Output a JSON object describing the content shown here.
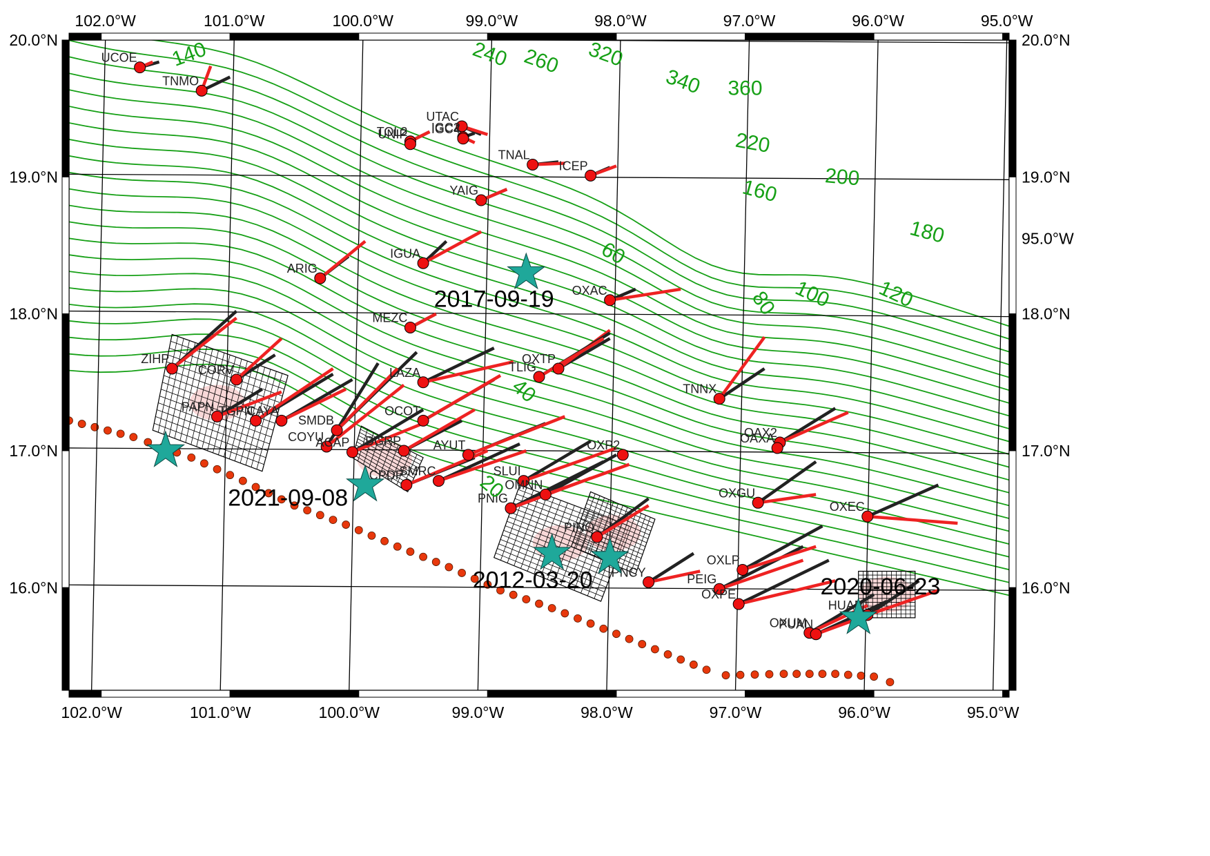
{
  "map": {
    "lon_range": [
      -102.25,
      -94.95
    ],
    "lat_range": [
      15.25,
      20.0
    ],
    "lon_ticks": [
      {
        "value": -102.0,
        "label": "102.0°W"
      },
      {
        "value": -101.0,
        "label": "101.0°W"
      },
      {
        "value": -100.0,
        "label": "100.0°W"
      },
      {
        "value": -99.0,
        "label": "99.0°W"
      },
      {
        "value": -98.0,
        "label": "98.0°W"
      },
      {
        "value": -97.0,
        "label": "97.0°W"
      },
      {
        "value": -96.0,
        "label": "96.0°W"
      },
      {
        "value": -95.0,
        "label": "95.0°W"
      }
    ],
    "lat_ticks": [
      {
        "value": 20.0,
        "label": "20.0°N"
      },
      {
        "value": 19.0,
        "label": "19.0°N"
      },
      {
        "value": 18.0,
        "label": "18.0°N"
      },
      {
        "value": 17.0,
        "label": "17.0°N"
      },
      {
        "value": 16.0,
        "label": "16.0°N"
      }
    ],
    "right_extra_label": "95.0°W",
    "colors": {
      "contour": "#16a016",
      "observed": "#ee2222",
      "model": "#222222",
      "station": "#ee1111",
      "star": "#1fa89a",
      "trench": "#e8380c",
      "grid": "#000000"
    }
  },
  "contour_labels": [
    {
      "text": "140",
      "lon": -101.3,
      "lat": 19.85,
      "rot": -20
    },
    {
      "text": "240",
      "lon": -99.0,
      "lat": 19.85,
      "rot": 20
    },
    {
      "text": "260",
      "lon": -98.6,
      "lat": 19.8,
      "rot": 20
    },
    {
      "text": "320",
      "lon": -98.1,
      "lat": 19.85,
      "rot": 20
    },
    {
      "text": "340",
      "lon": -97.5,
      "lat": 19.65,
      "rot": 20
    },
    {
      "text": "360",
      "lon": -97.0,
      "lat": 19.6,
      "rot": 0
    },
    {
      "text": "220",
      "lon": -96.95,
      "lat": 19.2,
      "rot": 10
    },
    {
      "text": "200",
      "lon": -96.25,
      "lat": 18.95,
      "rot": 5
    },
    {
      "text": "160",
      "lon": -96.9,
      "lat": 18.85,
      "rot": 15
    },
    {
      "text": "180",
      "lon": -95.6,
      "lat": 18.55,
      "rot": 15
    },
    {
      "text": "60",
      "lon": -98.05,
      "lat": 18.4,
      "rot": 30
    },
    {
      "text": "100",
      "lon": -96.5,
      "lat": 18.1,
      "rot": 25
    },
    {
      "text": "80",
      "lon": -96.9,
      "lat": 18.05,
      "rot": 55
    },
    {
      "text": "120",
      "lon": -95.85,
      "lat": 18.1,
      "rot": 25
    },
    {
      "text": "40",
      "lon": -98.75,
      "lat": 17.4,
      "rot": 40
    },
    {
      "text": "20",
      "lon": -99.0,
      "lat": 16.7,
      "rot": 40
    }
  ],
  "event_labels": [
    {
      "text": "2017-09-19",
      "lon": -98.95,
      "lat": 18.05
    },
    {
      "text": "2021-09-08",
      "lon": -100.55,
      "lat": 16.6
    },
    {
      "text": "2012-03-20",
      "lon": -98.65,
      "lat": 16.0
    },
    {
      "text": "2020-06-23",
      "lon": -95.95,
      "lat": 15.95
    }
  ],
  "stars": [
    {
      "name": "2017-09-19",
      "lon": -98.7,
      "lat": 18.3
    },
    {
      "name": "2021-09-08",
      "lon": -101.5,
      "lat": 17.0
    },
    {
      "name": "2021-09-08-b",
      "lon": -99.95,
      "lat": 16.75
    },
    {
      "name": "2012-03-20",
      "lon": -98.5,
      "lat": 16.25
    },
    {
      "name": "2012-03-20-b",
      "lon": -98.05,
      "lat": 16.22
    },
    {
      "name": "2020-06-23",
      "lon": -96.12,
      "lat": 15.78
    }
  ],
  "stations": [
    {
      "code": "UCOE",
      "lon": -101.7,
      "lat": 19.8,
      "obs": [
        -101.6,
        19.84
      ],
      "mod": [
        -101.55,
        19.84
      ]
    },
    {
      "code": "TNMO",
      "lon": -101.22,
      "lat": 19.63,
      "obs": [
        -101.15,
        19.81
      ],
      "mod": [
        -101.0,
        19.73
      ]
    },
    {
      "code": "TOL2",
      "lon": -99.6,
      "lat": 19.26,
      "obs": [
        -99.45,
        19.33
      ],
      "mod": [
        -99.45,
        19.33
      ]
    },
    {
      "code": "UTAC",
      "lon": -99.2,
      "lat": 19.37,
      "obs": [
        -99.0,
        19.31
      ],
      "mod": [
        -99.05,
        19.31
      ]
    },
    {
      "code": "IGC2",
      "lon": -99.19,
      "lat": 19.29,
      "obs": [
        -99.1,
        19.25
      ],
      "mod": [
        -99.1,
        19.32
      ]
    },
    {
      "code": "UNIP",
      "lon": -99.6,
      "lat": 19.24,
      "obs": [
        -99.6,
        19.24
      ],
      "mod": [
        -99.6,
        19.24
      ]
    },
    {
      "code": "IGC4",
      "lon": -99.19,
      "lat": 19.28,
      "obs": [
        -99.19,
        19.28
      ],
      "mod": [
        -99.19,
        19.28
      ]
    },
    {
      "code": "TNAL",
      "lon": -98.65,
      "lat": 19.09,
      "obs": [
        -98.4,
        19.1
      ],
      "mod": [
        -98.45,
        19.11
      ]
    },
    {
      "code": "ICEP",
      "lon": -98.2,
      "lat": 19.01,
      "obs": [
        -98.0,
        19.08
      ],
      "mod": [
        -98.05,
        19.07
      ]
    },
    {
      "code": "YAIG",
      "lon": -99.05,
      "lat": 18.83,
      "obs": [
        -98.85,
        18.91
      ],
      "mod": [
        -98.85,
        18.91
      ]
    },
    {
      "code": "ARIG",
      "lon": -100.3,
      "lat": 18.26,
      "obs": [
        -99.95,
        18.53
      ],
      "mod": [
        -100.08,
        18.42
      ]
    },
    {
      "code": "IGUA",
      "lon": -99.5,
      "lat": 18.37,
      "obs": [
        -99.05,
        18.6
      ],
      "mod": [
        -99.32,
        18.53
      ]
    },
    {
      "code": "OXAC",
      "lon": -98.05,
      "lat": 18.1,
      "obs": [
        -97.5,
        18.18
      ],
      "mod": [
        -97.85,
        18.18
      ]
    },
    {
      "code": "MEZC",
      "lon": -99.6,
      "lat": 17.9,
      "obs": [
        -99.4,
        18.0
      ],
      "mod": [
        -99.4,
        18.0
      ]
    },
    {
      "code": "ZIHP",
      "lon": -101.45,
      "lat": 17.6,
      "obs": [
        -100.95,
        17.97
      ],
      "mod": [
        -100.95,
        18.02
      ]
    },
    {
      "code": "CORV",
      "lon": -100.95,
      "lat": 17.52,
      "obs": [
        -100.6,
        17.82
      ],
      "mod": [
        -100.65,
        17.7
      ]
    },
    {
      "code": "PAPN",
      "lon": -101.1,
      "lat": 17.25,
      "obs": [
        -100.6,
        17.43
      ],
      "mod": [
        -100.75,
        17.45
      ]
    },
    {
      "code": "TGPN",
      "lon": -100.8,
      "lat": 17.22,
      "obs": [
        -100.2,
        17.6
      ],
      "mod": [
        -100.2,
        17.56
      ]
    },
    {
      "code": "LAZA",
      "lon": -99.5,
      "lat": 17.5,
      "obs": [
        -98.8,
        17.65
      ],
      "mod": [
        -98.95,
        17.75
      ]
    },
    {
      "code": "OXTP",
      "lon": -98.45,
      "lat": 17.6,
      "obs": [
        -98.05,
        17.88
      ],
      "mod": [
        -98.05,
        17.82
      ]
    },
    {
      "code": "TLIG",
      "lon": -98.6,
      "lat": 17.54,
      "obs": [
        -98.1,
        17.82
      ],
      "mod": [
        -98.05,
        17.86
      ]
    },
    {
      "code": "TNNX",
      "lon": -97.2,
      "lat": 17.38,
      "obs": [
        -96.85,
        17.83
      ],
      "mod": [
        -96.85,
        17.6
      ]
    },
    {
      "code": "OAX2",
      "lon": -96.73,
      "lat": 17.06,
      "obs": [
        -96.2,
        17.28
      ],
      "mod": [
        -96.3,
        17.31
      ]
    },
    {
      "code": "COYU",
      "lon": -100.25,
      "lat": 17.03,
      "obs": [
        -99.65,
        17.48
      ],
      "mod": [
        -99.85,
        17.64
      ]
    },
    {
      "code": "SMDB",
      "lon": -100.17,
      "lat": 17.15,
      "obs": [
        -99.7,
        17.6
      ],
      "mod": [
        -99.55,
        17.72
      ]
    },
    {
      "code": "ACAP",
      "lon": -100.05,
      "lat": 16.99,
      "obs": [
        -99.5,
        17.2
      ],
      "mod": [
        -99.5,
        17.3
      ]
    },
    {
      "code": "OCOT",
      "lon": -99.5,
      "lat": 17.22,
      "obs": [
        -98.9,
        17.55
      ],
      "mod": [
        -98.95,
        17.52
      ]
    },
    {
      "code": "DGRP",
      "lon": -99.65,
      "lat": 17.0,
      "obs": [
        -99.1,
        17.3
      ],
      "mod": [
        -99.2,
        17.22
      ]
    },
    {
      "code": "CAYA",
      "lon": -100.6,
      "lat": 17.22,
      "obs": [
        -100.1,
        17.45
      ],
      "mod": [
        -100.05,
        17.52
      ]
    },
    {
      "code": "AYUT",
      "lon": -99.15,
      "lat": 16.97,
      "obs": [
        -98.4,
        17.25
      ],
      "mod": [
        -98.55,
        17.2
      ]
    },
    {
      "code": "CPDP",
      "lon": -99.63,
      "lat": 16.75,
      "obs": [
        -99.0,
        17.0
      ],
      "mod": [
        -99.1,
        16.95
      ]
    },
    {
      "code": "SMRC",
      "lon": -99.38,
      "lat": 16.78,
      "obs": [
        -98.7,
        17.0
      ],
      "mod": [
        -98.75,
        17.05
      ]
    },
    {
      "code": "OXP2",
      "lon": -97.95,
      "lat": 16.97,
      "obs": [
        -97.95,
        16.97
      ],
      "mod": [
        -97.95,
        16.97
      ]
    },
    {
      "code": "OAXA",
      "lon": -96.75,
      "lat": 17.02,
      "obs": [
        -96.75,
        17.02
      ],
      "mod": [
        -96.75,
        17.02
      ]
    },
    {
      "code": "SLUI",
      "lon": -98.72,
      "lat": 16.78,
      "obs": [
        -98.0,
        17.02
      ],
      "mod": [
        -98.2,
        17.07
      ]
    },
    {
      "code": "OMNN",
      "lon": -98.55,
      "lat": 16.68,
      "obs": [
        -97.9,
        16.9
      ],
      "mod": [
        -98.0,
        16.97
      ]
    },
    {
      "code": "PNIG",
      "lon": -98.82,
      "lat": 16.58,
      "obs": [
        -98.2,
        16.8
      ],
      "mod": [
        -98.1,
        16.92
      ]
    },
    {
      "code": "OXGU",
      "lon": -96.9,
      "lat": 16.62,
      "obs": [
        -96.45,
        16.68
      ],
      "mod": [
        -96.45,
        16.92
      ]
    },
    {
      "code": "OXEC",
      "lon": -96.05,
      "lat": 16.52,
      "obs": [
        -95.35,
        16.47
      ],
      "mod": [
        -95.5,
        16.75
      ]
    },
    {
      "code": "PINO",
      "lon": -98.15,
      "lat": 16.37,
      "obs": [
        -97.75,
        16.6
      ],
      "mod": [
        -97.75,
        16.65
      ]
    },
    {
      "code": "PNCY",
      "lon": -97.75,
      "lat": 16.04,
      "obs": [
        -97.35,
        16.12
      ],
      "mod": [
        -97.4,
        16.25
      ]
    },
    {
      "code": "PEIG",
      "lon": -97.2,
      "lat": 15.99,
      "obs": [
        -96.55,
        16.2
      ],
      "mod": [
        -96.55,
        16.3
      ]
    },
    {
      "code": "OXLP",
      "lon": -97.02,
      "lat": 16.13,
      "obs": [
        -96.45,
        16.3
      ],
      "mod": [
        -96.4,
        16.45
      ]
    },
    {
      "code": "OXPE",
      "lon": -97.05,
      "lat": 15.88,
      "obs": [
        -96.3,
        16.05
      ],
      "mod": [
        -96.35,
        16.2
      ]
    },
    {
      "code": "OXUM",
      "lon": -96.5,
      "lat": 15.67,
      "obs": [
        -96.05,
        15.87
      ],
      "mod": [
        -96.0,
        15.95
      ]
    },
    {
      "code": "PUAN",
      "lon": -96.45,
      "lat": 15.66,
      "obs": [
        -95.9,
        15.85
      ],
      "mod": [
        -95.9,
        15.9
      ]
    },
    {
      "code": "HUAM",
      "lon": -96.05,
      "lat": 15.8,
      "obs": [
        -95.5,
        15.98
      ],
      "mod": [
        -95.65,
        16.05
      ]
    }
  ],
  "grids": [
    {
      "name": "grid-2021-09-08-west",
      "corners": [
        [
          -101.45,
          17.85
        ],
        [
          -100.55,
          17.55
        ],
        [
          -100.75,
          16.85
        ],
        [
          -101.6,
          17.15
        ]
      ],
      "nx": 20,
      "ny": 14
    },
    {
      "name": "grid-2021-09-08-east",
      "corners": [
        [
          -99.98,
          17.18
        ],
        [
          -99.5,
          16.95
        ],
        [
          -99.62,
          16.7
        ],
        [
          -100.05,
          16.95
        ]
      ],
      "nx": 10,
      "ny": 10
    },
    {
      "name": "grid-2012-03-20",
      "corners": [
        [
          -98.75,
          16.75
        ],
        [
          -97.9,
          16.45
        ],
        [
          -98.12,
          15.9
        ],
        [
          -98.95,
          16.22
        ]
      ],
      "nx": 16,
      "ny": 16
    },
    {
      "name": "grid-2012-03-20-b",
      "corners": [
        [
          -98.2,
          16.7
        ],
        [
          -97.7,
          16.5
        ],
        [
          -97.85,
          16.1
        ],
        [
          -98.35,
          16.3
        ]
      ],
      "nx": 14,
      "ny": 14
    },
    {
      "name": "grid-2020-06-23",
      "corners": [
        [
          -96.12,
          16.12
        ],
        [
          -95.68,
          16.12
        ],
        [
          -95.68,
          15.78
        ],
        [
          -96.12,
          15.78
        ]
      ],
      "nx": 12,
      "ny": 12
    }
  ],
  "trench": {
    "points": [
      [
        -102.25,
        17.22
      ],
      [
        -101.75,
        17.1
      ],
      [
        -101.3,
        16.95
      ],
      [
        -100.9,
        16.78
      ],
      [
        -100.5,
        16.6
      ],
      [
        -100.1,
        16.46
      ],
      [
        -99.7,
        16.3
      ],
      [
        -99.3,
        16.15
      ],
      [
        -98.9,
        15.98
      ],
      [
        -98.5,
        15.85
      ],
      [
        -98.1,
        15.7
      ],
      [
        -97.7,
        15.55
      ],
      [
        -97.3,
        15.4
      ],
      [
        -97.15,
        15.36
      ],
      [
        -96.7,
        15.37
      ],
      [
        -96.3,
        15.37
      ],
      [
        -96.0,
        15.35
      ],
      [
        -95.75,
        15.27
      ]
    ]
  }
}
